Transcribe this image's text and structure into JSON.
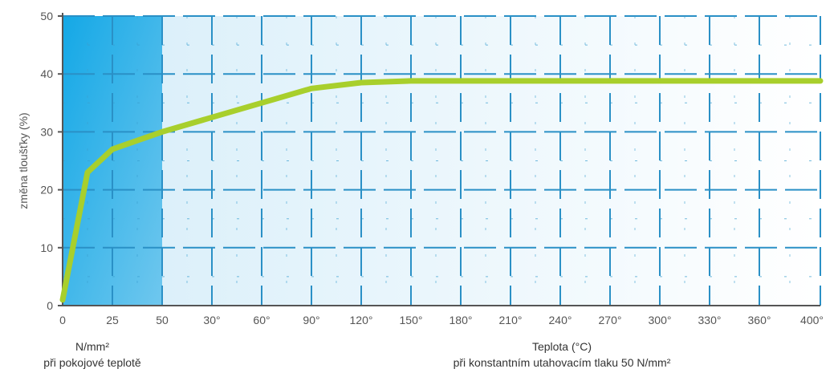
{
  "chart_data": {
    "type": "line",
    "ylabel": "změna tloušťky  (%)",
    "ylim": [
      0,
      50
    ],
    "yticks": [
      "0",
      "10",
      "20",
      "30",
      "40",
      "50"
    ],
    "xticks": [
      "0",
      "25",
      "50",
      "30°",
      "60°",
      "90°",
      "120°",
      "150°",
      "180°",
      "210°",
      "240°",
      "270°",
      "300°",
      "330°",
      "360°",
      "400°"
    ],
    "left_caption": [
      "N/mm²",
      "při pokojové teplotě"
    ],
    "right_caption": [
      "Teplota (°C)",
      "při konstantním utahovacím tlaku 50 N/mm²"
    ],
    "series": [
      {
        "x": [
          "0",
          "",
          "25",
          "",
          "50",
          "30°",
          "60°",
          "90°",
          "120°",
          "150°",
          "180°",
          "210°",
          "240°",
          "270°",
          "300°",
          "330°",
          "360°",
          "400°"
        ],
        "values": [
          1,
          23,
          27,
          28.5,
          30,
          32.5,
          35,
          37.5,
          38.5,
          38.8,
          38.8,
          38.8,
          38.8,
          38.8,
          38.8,
          38.8,
          38.8,
          38.8
        ]
      }
    ],
    "colors": {
      "pressure_region": "#22aee6",
      "temperature_region": "#e2f2fa",
      "line": "#a8cf2c",
      "grid_major": "#2a90c6",
      "grid_minor": "#3a9fd0"
    }
  }
}
